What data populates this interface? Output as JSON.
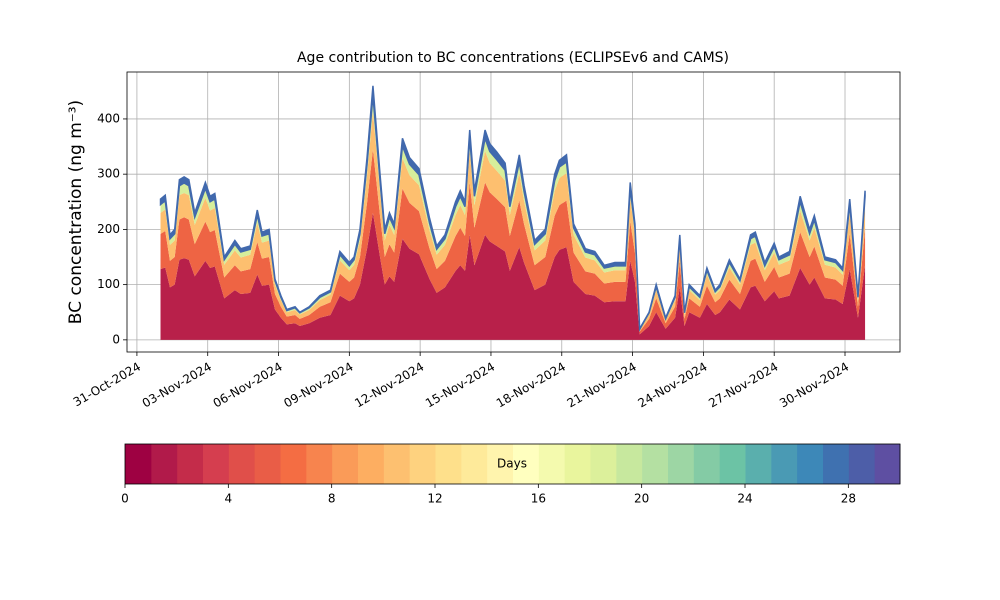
{
  "chart_data": {
    "type": "stacked_area",
    "title": "Age contribution to BC concentrations (ECLIPSEv6 and CAMS)",
    "y_label": "BC concentration (ng m⁻³)",
    "x": [
      1.0,
      1.2,
      1.4,
      1.6,
      1.8,
      2.0,
      2.2,
      2.45,
      2.9,
      3.1,
      3.3,
      3.7,
      4.15,
      4.4,
      4.8,
      5.1,
      5.3,
      5.6,
      5.85,
      6.1,
      6.35,
      6.7,
      6.9,
      7.3,
      7.75,
      8.2,
      8.6,
      9.0,
      9.2,
      9.45,
      9.75,
      10.0,
      10.3,
      10.5,
      10.7,
      10.9,
      11.25,
      11.55,
      11.95,
      12.4,
      12.7,
      13.05,
      13.5,
      13.7,
      13.9,
      14.1,
      14.3,
      14.75,
      14.95,
      15.25,
      15.6,
      15.8,
      16.2,
      16.4,
      16.85,
      17.3,
      17.7,
      17.9,
      18.2,
      18.5,
      19.0,
      19.4,
      19.8,
      20.25,
      20.7,
      20.9,
      21.1,
      21.3,
      21.7,
      22.0,
      22.4,
      22.8,
      23.0,
      23.2,
      23.4,
      23.85,
      24.15,
      24.5,
      24.7,
      25.1,
      25.55,
      26.0,
      26.2,
      26.6,
      27.0,
      27.2,
      27.65,
      28.1,
      28.5,
      28.7,
      29.15,
      29.6,
      29.9,
      30.2,
      30.55,
      30.85
    ],
    "series": [
      {
        "color": "#b8204a",
        "values": [
          128,
          131,
          95,
          100,
          145,
          148,
          145,
          115,
          143,
          130,
          133,
          75,
          90,
          83,
          85,
          118,
          98,
          100,
          55,
          40,
          28,
          30,
          25,
          30,
          40,
          45,
          80,
          70,
          75,
          100,
          165,
          230,
          150,
          100,
          115,
          105,
          183,
          165,
          155,
          110,
          85,
          95,
          125,
          135,
          125,
          190,
          135,
          190,
          178,
          170,
          160,
          125,
          168,
          140,
          90,
          100,
          150,
          163,
          168,
          105,
          83,
          80,
          68,
          70,
          70,
          143,
          105,
          10,
          25,
          50,
          20,
          40,
          95,
          25,
          50,
          40,
          65,
          45,
          50,
          73,
          55,
          95,
          98,
          70,
          88,
          75,
          80,
          130,
          100,
          113,
          75,
          73,
          65,
          128,
          40,
          135
        ]
      },
      {
        "color": "#ee6444",
        "values": [
          64,
          66,
          48,
          50,
          73,
          74,
          73,
          58,
          71,
          65,
          66,
          38,
          45,
          41,
          43,
          59,
          49,
          50,
          28,
          20,
          14,
          15,
          13,
          15,
          20,
          23,
          40,
          35,
          38,
          50,
          83,
          115,
          75,
          50,
          58,
          53,
          91,
          83,
          78,
          55,
          43,
          48,
          63,
          68,
          63,
          95,
          68,
          95,
          89,
          85,
          80,
          63,
          84,
          70,
          45,
          50,
          75,
          81,
          84,
          53,
          41,
          40,
          34,
          35,
          35,
          71,
          53,
          5,
          13,
          25,
          10,
          20,
          48,
          13,
          25,
          20,
          33,
          23,
          25,
          36,
          28,
          48,
          49,
          35,
          44,
          38,
          40,
          65,
          50,
          56,
          38,
          36,
          33,
          64,
          20,
          68
        ]
      },
      {
        "color": "#fdbf6f",
        "values": [
          38,
          39,
          29,
          30,
          44,
          44,
          44,
          35,
          43,
          39,
          40,
          23,
          27,
          25,
          26,
          35,
          29,
          30,
          17,
          12,
          8,
          9,
          8,
          9,
          12,
          14,
          24,
          21,
          23,
          30,
          50,
          69,
          45,
          30,
          35,
          32,
          55,
          50,
          47,
          33,
          26,
          29,
          38,
          41,
          38,
          57,
          41,
          57,
          53,
          51,
          48,
          38,
          50,
          42,
          27,
          30,
          45,
          49,
          50,
          32,
          25,
          24,
          20,
          21,
          21,
          43,
          32,
          3,
          8,
          15,
          6,
          12,
          29,
          8,
          15,
          12,
          20,
          14,
          15,
          22,
          17,
          29,
          29,
          21,
          26,
          23,
          24,
          39,
          30,
          34,
          23,
          22,
          20,
          38,
          12,
          41
        ]
      },
      {
        "color": "#d6ee9b",
        "values": [
          15,
          16,
          11,
          12,
          17,
          18,
          17,
          14,
          17,
          16,
          16,
          9,
          11,
          10,
          10,
          14,
          12,
          12,
          7,
          5,
          3,
          4,
          3,
          4,
          5,
          5,
          10,
          8,
          9,
          12,
          20,
          28,
          18,
          12,
          14,
          13,
          22,
          20,
          19,
          13,
          10,
          11,
          15,
          16,
          15,
          23,
          16,
          23,
          21,
          20,
          19,
          15,
          20,
          17,
          11,
          12,
          18,
          20,
          20,
          13,
          10,
          10,
          8,
          8,
          8,
          17,
          13,
          1,
          3,
          6,
          2,
          5,
          11,
          3,
          6,
          5,
          8,
          5,
          6,
          9,
          7,
          11,
          12,
          8,
          11,
          9,
          10,
          16,
          12,
          14,
          9,
          9,
          8,
          15,
          5,
          16
        ]
      },
      {
        "color": "#4169ad",
        "values": [
          10,
          10,
          7,
          8,
          11,
          11,
          11,
          8,
          11,
          10,
          10,
          5,
          7,
          6,
          6,
          9,
          7,
          8,
          3,
          3,
          2,
          2,
          1,
          2,
          3,
          3,
          6,
          6,
          5,
          8,
          12,
          18,
          12,
          8,
          8,
          7,
          14,
          12,
          11,
          9,
          6,
          7,
          9,
          10,
          9,
          15,
          10,
          15,
          14,
          14,
          13,
          9,
          13,
          11,
          7,
          8,
          12,
          12,
          13,
          7,
          6,
          6,
          5,
          6,
          6,
          11,
          7,
          1,
          1,
          4,
          2,
          3,
          7,
          1,
          4,
          3,
          4,
          3,
          4,
          5,
          3,
          7,
          7,
          6,
          6,
          5,
          6,
          10,
          8,
          8,
          5,
          5,
          4,
          10,
          3,
          10
        ]
      }
    ],
    "xlim": [
      -0.42,
      32.33
    ],
    "xticks": [
      {
        "value": 0,
        "label": "31-Oct-2024"
      },
      {
        "value": 3,
        "label": "03-Nov-2024"
      },
      {
        "value": 6,
        "label": "06-Nov-2024"
      },
      {
        "value": 9,
        "label": "09-Nov-2024"
      },
      {
        "value": 12,
        "label": "12-Nov-2024"
      },
      {
        "value": 15,
        "label": "15-Nov-2024"
      },
      {
        "value": 18,
        "label": "18-Nov-2024"
      },
      {
        "value": 21,
        "label": "21-Nov-2024"
      },
      {
        "value": 24,
        "label": "24-Nov-2024"
      },
      {
        "value": 27,
        "label": "27-Nov-2024"
      },
      {
        "value": 30,
        "label": "30-Nov-2024"
      }
    ],
    "ylim": [
      -22,
      485
    ],
    "yticks": [
      0,
      100,
      200,
      300,
      400
    ],
    "grid": true,
    "colorbar": {
      "label": "Days",
      "lim": [
        0,
        30
      ],
      "ticks": [
        0,
        4,
        8,
        12,
        16,
        20,
        24,
        28
      ],
      "colors": [
        "#9e0142",
        "#b11a4a",
        "#c42c4a",
        "#d53e4f",
        "#e04f4a",
        "#e95d47",
        "#f46d43",
        "#f7844e",
        "#fa9b58",
        "#fdae61",
        "#fdc070",
        "#fed27f",
        "#fee08b",
        "#feea9a",
        "#fff4ad",
        "#ffffbf",
        "#f4faae",
        "#e9f59d",
        "#dcf09b",
        "#c7e89e",
        "#b4e0a2",
        "#9dd6a4",
        "#84cba5",
        "#6cc3a5",
        "#5aafad",
        "#4a9ab4",
        "#3d88b8",
        "#3f71b0",
        "#4d5ea8",
        "#5e4fa2"
      ]
    }
  }
}
